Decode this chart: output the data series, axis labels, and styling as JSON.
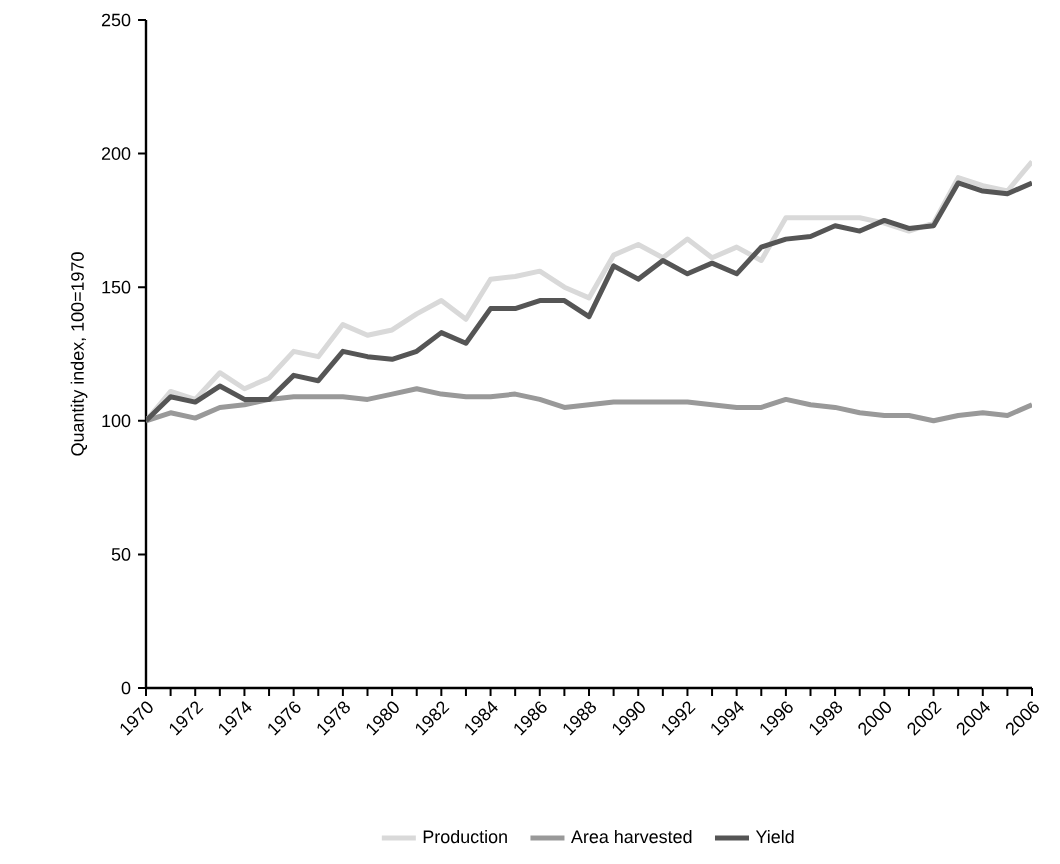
{
  "chart_data": {
    "type": "line",
    "ylabel": "Quantity index, 100=1970",
    "x": [
      1970,
      1971,
      1972,
      1973,
      1974,
      1975,
      1976,
      1977,
      1978,
      1979,
      1980,
      1981,
      1982,
      1983,
      1984,
      1985,
      1986,
      1987,
      1988,
      1989,
      1990,
      1991,
      1992,
      1993,
      1994,
      1995,
      1996,
      1997,
      1998,
      1999,
      2000,
      2001,
      2002,
      2003,
      2004,
      2005,
      2006
    ],
    "series": [
      {
        "name": "Production",
        "color": "#d9d9d9",
        "values": [
          100,
          111,
          108,
          118,
          112,
          116,
          126,
          124,
          136,
          132,
          134,
          140,
          145,
          138,
          153,
          154,
          156,
          150,
          146,
          162,
          166,
          161,
          168,
          161,
          165,
          160,
          176,
          176,
          176,
          176,
          174,
          171,
          174,
          191,
          188,
          186,
          197
        ]
      },
      {
        "name": "Area harvested",
        "color": "#999999",
        "values": [
          100,
          103,
          101,
          105,
          106,
          108,
          109,
          109,
          109,
          108,
          110,
          112,
          110,
          109,
          109,
          110,
          108,
          105,
          106,
          107,
          107,
          107,
          107,
          106,
          105,
          105,
          108,
          106,
          105,
          103,
          102,
          102,
          100,
          102,
          103,
          102,
          106
        ]
      },
      {
        "name": "Yield",
        "color": "#555555",
        "values": [
          100,
          109,
          107,
          113,
          108,
          108,
          117,
          115,
          126,
          124,
          123,
          126,
          133,
          129,
          142,
          142,
          145,
          145,
          139,
          158,
          153,
          160,
          155,
          159,
          155,
          165,
          168,
          169,
          173,
          171,
          175,
          172,
          173,
          189,
          186,
          185,
          189
        ]
      }
    ],
    "xlim": [
      1970,
      2006
    ],
    "xticks": [
      1970,
      {
        "value": 1971,
        "label": null
      },
      1972,
      {
        "value": 1973,
        "label": null
      },
      1974,
      {
        "value": 1975,
        "label": null
      },
      1976,
      {
        "value": 1977,
        "label": null
      },
      1978,
      {
        "value": 1979,
        "label": null
      },
      1980,
      {
        "value": 1981,
        "label": null
      },
      1982,
      {
        "value": 1983,
        "label": null
      },
      1984,
      {
        "value": 1985,
        "label": null
      },
      1986,
      {
        "value": 1987,
        "label": null
      },
      1988,
      {
        "value": 1989,
        "label": null
      },
      1990,
      {
        "value": 1991,
        "label": null
      },
      1992,
      {
        "value": 1993,
        "label": null
      },
      1994,
      {
        "value": 1995,
        "label": null
      },
      1996,
      {
        "value": 1997,
        "label": null
      },
      1998,
      {
        "value": 1999,
        "label": null
      },
      2000,
      {
        "value": 2001,
        "label": null
      },
      2002,
      {
        "value": 2003,
        "label": null
      },
      2004,
      {
        "value": 2005,
        "label": null
      },
      2006
    ],
    "ylim": [
      0,
      250
    ],
    "yticks": [
      0,
      50,
      100,
      150,
      200,
      250
    ],
    "grid": false,
    "legend": "bottom",
    "marker": "none",
    "line_style": "solid"
  }
}
